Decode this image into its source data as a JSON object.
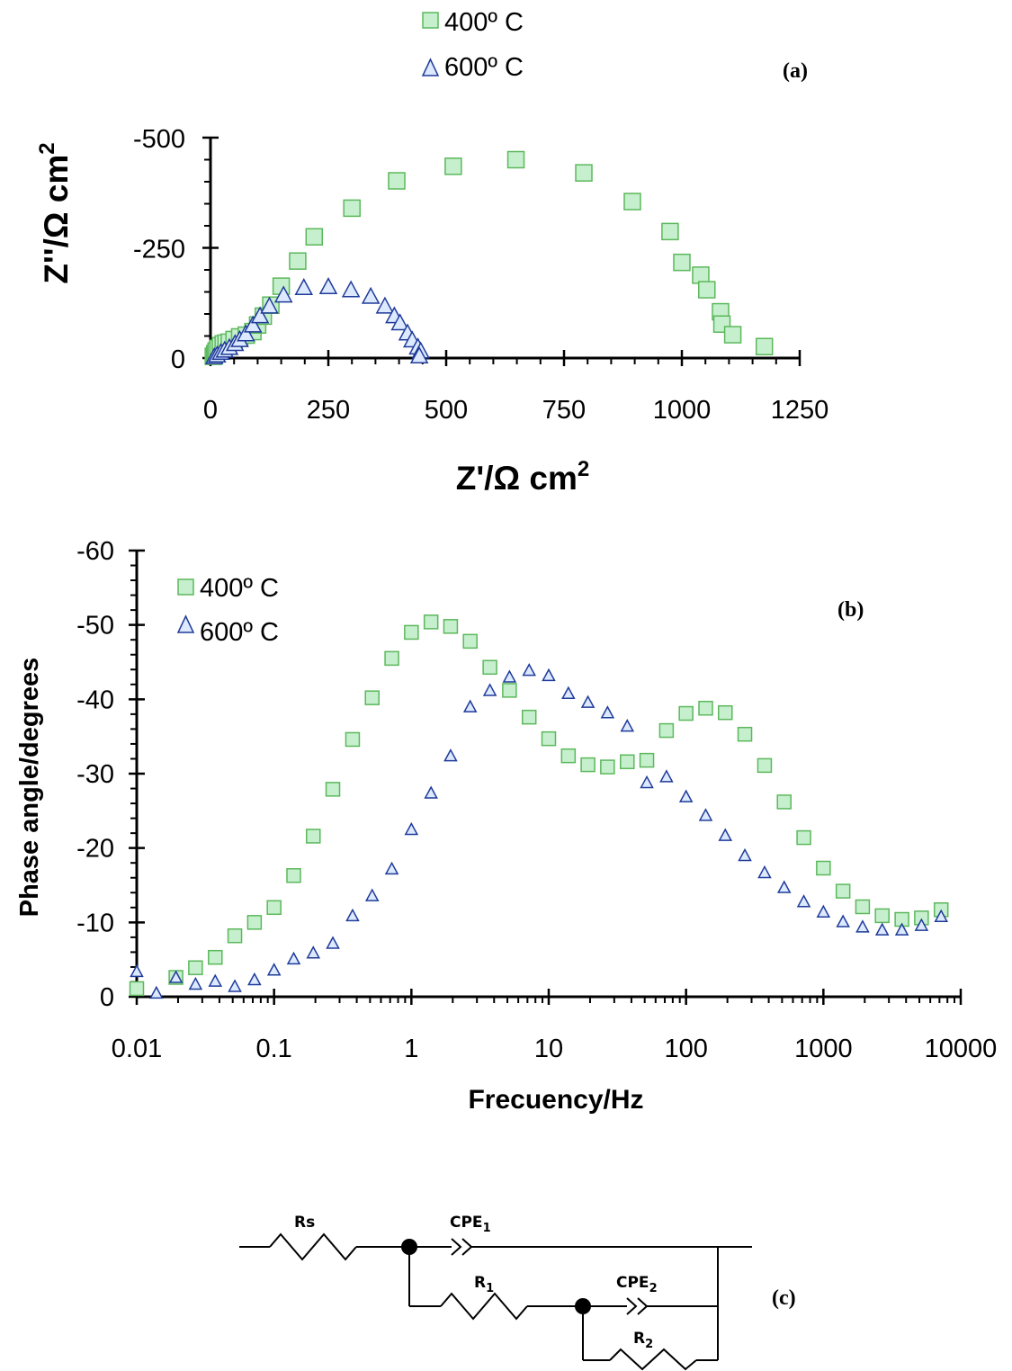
{
  "colors": {
    "series_400": {
      "fill": "#c6efce",
      "stroke": "#5cb85c"
    },
    "series_600": {
      "fill": "#dde9ff",
      "stroke": "#1f3b99"
    },
    "axis": "#000000"
  },
  "chart_data": [
    {
      "id": "a",
      "type": "scatter",
      "panel_label": "(a)",
      "xlabel": "Z'/Ω cm",
      "xlabel_sup": "2",
      "ylabel": "Z''/Ω cm",
      "ylabel_sup": "2",
      "xlim": [
        0,
        1250
      ],
      "ylim": [
        0,
        -500
      ],
      "x_ticks": [
        0,
        250,
        500,
        750,
        1000,
        1250
      ],
      "x_tick_labels": [
        "0",
        "250",
        "500",
        "750",
        "1000",
        "1250"
      ],
      "y_ticks": [
        0,
        -250,
        -500
      ],
      "y_tick_labels": [
        "0",
        "-250",
        "-500"
      ],
      "legend_position": "top-center",
      "series": [
        {
          "name": "400º C",
          "marker": "square",
          "points": [
            [
              6,
              -4
            ],
            [
              9,
              -10
            ],
            [
              12,
              -16
            ],
            [
              16,
              -22
            ],
            [
              21,
              -28
            ],
            [
              27,
              -32
            ],
            [
              33,
              -34
            ],
            [
              40,
              -36
            ],
            [
              50,
              -42
            ],
            [
              62,
              -48
            ],
            [
              76,
              -52
            ],
            [
              90,
              -60
            ],
            [
              100,
              -75
            ],
            [
              112,
              -95
            ],
            [
              128,
              -120
            ],
            [
              150,
              -163
            ],
            [
              185,
              -220
            ],
            [
              220,
              -275
            ],
            [
              300,
              -340
            ],
            [
              395,
              -402
            ],
            [
              515,
              -435
            ],
            [
              648,
              -450
            ],
            [
              792,
              -420
            ],
            [
              895,
              -355
            ],
            [
              975,
              -287
            ],
            [
              1000,
              -217
            ],
            [
              1040,
              -188
            ],
            [
              1053,
              -155
            ],
            [
              1082,
              -105
            ],
            [
              1085,
              -77
            ],
            [
              1108,
              -53
            ],
            [
              1175,
              -26
            ]
          ]
        },
        {
          "name": "600º C",
          "marker": "triangle",
          "points": [
            [
              8,
              -3
            ],
            [
              14,
              -7
            ],
            [
              22,
              -13
            ],
            [
              30,
              -18
            ],
            [
              40,
              -24
            ],
            [
              52,
              -33
            ],
            [
              62,
              -42
            ],
            [
              75,
              -55
            ],
            [
              90,
              -75
            ],
            [
              105,
              -96
            ],
            [
              125,
              -118
            ],
            [
              155,
              -143
            ],
            [
              198,
              -160
            ],
            [
              250,
              -162
            ],
            [
              298,
              -155
            ],
            [
              340,
              -140
            ],
            [
              370,
              -118
            ],
            [
              390,
              -96
            ],
            [
              402,
              -80
            ],
            [
              418,
              -57
            ],
            [
              428,
              -41
            ],
            [
              440,
              -25
            ],
            [
              446,
              -16
            ],
            [
              443,
              -5
            ]
          ]
        }
      ]
    },
    {
      "id": "b",
      "type": "scatter",
      "panel_label": "(b)",
      "xlabel": "Frecuency/Hz",
      "ylabel": "Phase angle/degrees",
      "x_scale": "log",
      "xlim": [
        0.01,
        10000
      ],
      "ylim": [
        0,
        -60
      ],
      "x_ticks": [
        0.01,
        0.1,
        1,
        10,
        100,
        1000,
        10000
      ],
      "x_tick_labels": [
        "0.01",
        "0.1",
        "1",
        "10",
        "100",
        "1000",
        "10000"
      ],
      "y_ticks": [
        0,
        -10,
        -20,
        -30,
        -40,
        -50,
        -60
      ],
      "y_tick_labels": [
        "0",
        "-10",
        "-20",
        "-30",
        "-40",
        "-50",
        "-60"
      ],
      "legend_position": "top-left",
      "series": [
        {
          "name": "400º C",
          "marker": "square",
          "points": [
            [
              0.01,
              -1.1
            ],
            [
              0.0193,
              -2.6
            ],
            [
              0.0268,
              -3.9
            ],
            [
              0.0373,
              -5.3
            ],
            [
              0.0518,
              -8.2
            ],
            [
              0.072,
              -10
            ],
            [
              0.1,
              -12
            ],
            [
              0.139,
              -16.3
            ],
            [
              0.193,
              -21.6
            ],
            [
              0.268,
              -27.9
            ],
            [
              0.373,
              -34.6
            ],
            [
              0.518,
              -40.2
            ],
            [
              0.72,
              -45.5
            ],
            [
              1,
              -49
            ],
            [
              1.39,
              -50.4
            ],
            [
              1.93,
              -49.8
            ],
            [
              2.68,
              -47.8
            ],
            [
              3.73,
              -44.3
            ],
            [
              5.18,
              -41.2
            ],
            [
              7.2,
              -37.6
            ],
            [
              10,
              -34.7
            ],
            [
              13.9,
              -32.4
            ],
            [
              19.3,
              -31.2
            ],
            [
              26.8,
              -30.9
            ],
            [
              37.3,
              -31.6
            ],
            [
              51.8,
              -31.8
            ],
            [
              72,
              -35.8
            ],
            [
              100,
              -38.1
            ],
            [
              139,
              -38.8
            ],
            [
              193,
              -38.2
            ],
            [
              268,
              -35.3
            ],
            [
              373,
              -31.1
            ],
            [
              518,
              -26.2
            ],
            [
              720,
              -21.4
            ],
            [
              1000,
              -17.3
            ],
            [
              1390,
              -14.2
            ],
            [
              1930,
              -12.1
            ],
            [
              2680,
              -10.9
            ],
            [
              3730,
              -10.4
            ],
            [
              5180,
              -10.6
            ],
            [
              7200,
              -11.7
            ]
          ]
        },
        {
          "name": "600º C",
          "marker": "triangle",
          "points": [
            [
              0.01,
              -3.4
            ],
            [
              0.0139,
              -0.5
            ],
            [
              0.0193,
              -2.6
            ],
            [
              0.0268,
              -1.7
            ],
            [
              0.0373,
              -2.1
            ],
            [
              0.0518,
              -1.4
            ],
            [
              0.072,
              -2.3
            ],
            [
              0.1,
              -3.6
            ],
            [
              0.139,
              -5.1
            ],
            [
              0.193,
              -5.9
            ],
            [
              0.268,
              -7.2
            ],
            [
              0.373,
              -10.9
            ],
            [
              0.518,
              -13.6
            ],
            [
              0.72,
              -17.2
            ],
            [
              1,
              -22.5
            ],
            [
              1.39,
              -27.4
            ],
            [
              1.93,
              -32.4
            ],
            [
              2.68,
              -39
            ],
            [
              3.73,
              -41.2
            ],
            [
              5.18,
              -43
            ],
            [
              7.2,
              -43.9
            ],
            [
              10,
              -43.2
            ],
            [
              13.9,
              -40.8
            ],
            [
              19.3,
              -39.6
            ],
            [
              26.8,
              -38.2
            ],
            [
              37.3,
              -36.4
            ],
            [
              51.8,
              -28.8
            ],
            [
              72,
              -29.6
            ],
            [
              100,
              -26.9
            ],
            [
              139,
              -24.4
            ],
            [
              193,
              -21.7
            ],
            [
              268,
              -19
            ],
            [
              373,
              -16.7
            ],
            [
              518,
              -14.7
            ],
            [
              720,
              -12.8
            ],
            [
              1000,
              -11.4
            ],
            [
              1390,
              -10.1
            ],
            [
              1930,
              -9.4
            ],
            [
              2680,
              -9
            ],
            [
              3730,
              -9
            ],
            [
              5180,
              -9.6
            ],
            [
              7200,
              -10.8
            ]
          ]
        }
      ]
    }
  ],
  "circuit": {
    "panel_label": "(c)",
    "rs": "Rs",
    "cpe1": "CPE",
    "cpe1_sub": "1",
    "r1": "R",
    "r1_sub": "1",
    "cpe2": "CPE",
    "cpe2_sub": "2",
    "r2": "R",
    "r2_sub": "2"
  }
}
